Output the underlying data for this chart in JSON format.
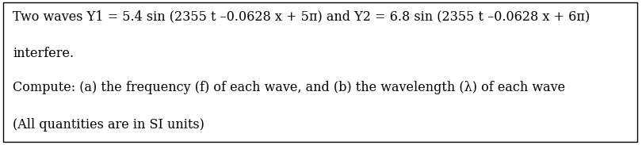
{
  "line1": "Two waves Y1 = 5.4 sin (2355 t –0.0628 x + 5π) and Y2 = 6.8 sin (2355 t –0.0628 x + 6π)",
  "line2": "interfere.",
  "line3": "Compute: (a) the frequency (f) of each wave, and (b) the wavelength (λ) of each wave",
  "line4": "(All quantities are in SI units)",
  "bg_color": "#ffffff",
  "border_color": "#000000",
  "text_color": "#000000",
  "font_size": 11.5,
  "fig_width": 8.1,
  "fig_height": 1.83,
  "dpi": 100
}
